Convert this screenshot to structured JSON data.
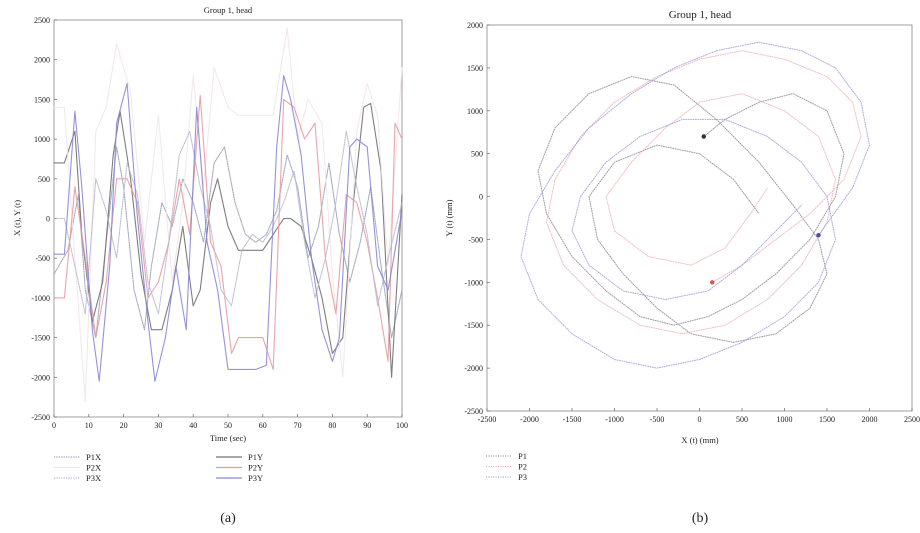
{
  "chart_data": [
    {
      "panel_label": "(a)",
      "type": "line",
      "title": "Group 1, head",
      "xlabel": "Time (sec)",
      "ylabel": "X (t), Y (t)",
      "xlim": [
        0,
        100
      ],
      "ylim": [
        -2500,
        2500
      ],
      "xticks": [
        "0",
        "10",
        "20",
        "30",
        "40",
        "50",
        "60",
        "70",
        "80",
        "90",
        "100"
      ],
      "yticks": [
        "2500",
        "2000",
        "1500",
        "1000",
        "500",
        "0",
        "-500",
        "-1000",
        "-1500",
        "-2000",
        "-2500"
      ],
      "grid": false,
      "legend_position": "bottom-left",
      "series": [
        {
          "name": "P1X",
          "color": "#9aa0b4",
          "x": [
            0,
            4,
            7,
            9,
            12,
            15,
            18,
            20,
            23,
            26,
            28,
            31,
            34,
            37,
            40,
            43,
            46,
            49,
            52,
            55,
            58,
            61,
            64,
            67,
            70,
            73,
            76,
            79,
            82,
            85,
            88,
            91,
            94,
            97,
            100
          ],
          "y": [
            -700,
            -400,
            300,
            -900,
            -1500,
            -300,
            900,
            400,
            -900,
            -1400,
            -600,
            200,
            -100,
            500,
            200,
            -300,
            700,
            900,
            200,
            -200,
            -300,
            -200,
            100,
            800,
            400,
            -500,
            -100,
            700,
            -200,
            -800,
            -300,
            400,
            -600,
            -1500,
            -900
          ]
        },
        {
          "name": "P1Y",
          "color": "#707070",
          "x": [
            0,
            3,
            6,
            8,
            11,
            14,
            17,
            19,
            22,
            25,
            28,
            31,
            34,
            37,
            40,
            42,
            45,
            47,
            50,
            53,
            56,
            60,
            63,
            66,
            68,
            71,
            74,
            77,
            80,
            83,
            86,
            89,
            91,
            94,
            97,
            100
          ],
          "y": [
            700,
            700,
            1100,
            -200,
            -1300,
            -800,
            800,
            1350,
            500,
            -700,
            -1400,
            -1400,
            -900,
            -100,
            -1100,
            -900,
            200,
            500,
            -100,
            -400,
            -400,
            -400,
            -200,
            0,
            0,
            -100,
            -500,
            -1000,
            -1700,
            -1500,
            200,
            1400,
            1450,
            600,
            -2000,
            300
          ]
        },
        {
          "name": "P2X",
          "color": "#f2e6ea",
          "x": [
            0,
            3,
            6,
            9,
            12,
            15,
            18,
            22,
            26,
            30,
            34,
            37,
            40,
            43,
            46,
            50,
            53,
            56,
            60,
            63,
            67,
            70,
            73,
            77,
            80,
            83,
            87,
            90,
            93,
            96,
            100
          ],
          "y": [
            1400,
            1400,
            -500,
            -2300,
            1100,
            1400,
            2200,
            1600,
            -300,
            1300,
            -800,
            200,
            1800,
            400,
            1900,
            1400,
            1300,
            1300,
            1300,
            1300,
            2400,
            1000,
            1500,
            1200,
            -700,
            -2000,
            1100,
            1700,
            1300,
            -600,
            1900
          ]
        },
        {
          "name": "P2Y",
          "color": "#e89aa0",
          "x": [
            0,
            3,
            6,
            9,
            12,
            15,
            18,
            21,
            24,
            27,
            30,
            33,
            36,
            39,
            42,
            45,
            48,
            51,
            53,
            56,
            60,
            63,
            66,
            69,
            72,
            75,
            78,
            81,
            84,
            87,
            90,
            93,
            96,
            98,
            100
          ],
          "y": [
            -1000,
            -1000,
            400,
            -500,
            -1500,
            -800,
            500,
            500,
            200,
            -1000,
            -800,
            -300,
            500,
            -200,
            1550,
            -300,
            -600,
            -1700,
            -1500,
            -1500,
            -1500,
            -1900,
            1500,
            1400,
            1000,
            1200,
            -500,
            -1200,
            300,
            200,
            -300,
            -1000,
            -1800,
            1200,
            1000
          ]
        },
        {
          "name": "P3X",
          "color": "#b8b8d0",
          "x": [
            0,
            3,
            6,
            9,
            12,
            15,
            18,
            21,
            24,
            27,
            30,
            33,
            36,
            39,
            42,
            45,
            48,
            51,
            54,
            57,
            60,
            63,
            66,
            69,
            72,
            75,
            78,
            81,
            84,
            87,
            90,
            93,
            96,
            100
          ],
          "y": [
            0,
            0,
            -600,
            -1200,
            500,
            100,
            -500,
            700,
            300,
            -800,
            -1200,
            -300,
            800,
            1100,
            400,
            -100,
            -900,
            -1100,
            -400,
            -200,
            -300,
            -100,
            200,
            600,
            -300,
            -1000,
            -500,
            200,
            1100,
            400,
            -200,
            -1100,
            -500,
            200
          ]
        },
        {
          "name": "P3Y",
          "color": "#8a86d8",
          "x": [
            0,
            3,
            6,
            8,
            11,
            13,
            16,
            18,
            21,
            24,
            27,
            29,
            32,
            35,
            38,
            41,
            44,
            47,
            50,
            52,
            55,
            58,
            61,
            64,
            66,
            68,
            71,
            74,
            77,
            80,
            82,
            85,
            87,
            90,
            93,
            96,
            100
          ],
          "y": [
            -450,
            -450,
            1350,
            400,
            -1400,
            -2050,
            -600,
            1200,
            1700,
            0,
            -1300,
            -2050,
            -1500,
            -600,
            -1400,
            1400,
            -300,
            -900,
            -1900,
            -1900,
            -1900,
            -1900,
            -1850,
            900,
            1800,
            1500,
            800,
            -500,
            -1400,
            -1800,
            -1500,
            900,
            1000,
            900,
            -600,
            -900,
            100
          ]
        }
      ]
    },
    {
      "panel_label": "(b)",
      "type": "line",
      "title": "Group 1, head",
      "xlabel": "X (t) (mm)",
      "ylabel": "Y (t) (mm)",
      "xlim": [
        -2500,
        2500
      ],
      "ylim": [
        -2500,
        2000
      ],
      "xticks": [
        "-2500",
        "-2000",
        "-1500",
        "-1000",
        "-500",
        "0",
        "500",
        "1000",
        "1500",
        "2000",
        "2500"
      ],
      "yticks": [
        "2000",
        "1500",
        "1000",
        "500",
        "0",
        "-500",
        "-1000",
        "-1500",
        "-2000",
        "-2500"
      ],
      "grid": false,
      "legend_position": "bottom-left",
      "series": [
        {
          "name": "P1",
          "color": "#7a7a86",
          "x": [
            50,
            300,
            700,
            1100,
            1500,
            1700,
            1600,
            1300,
            900,
            500,
            100,
            -300,
            -700,
            -1100,
            -1500,
            -1800,
            -1900,
            -1700,
            -1300,
            -800,
            -300,
            200,
            700,
            1100,
            1400,
            1500,
            1300,
            900,
            400,
            -100,
            -500,
            -900,
            -1200,
            -1300,
            -1000,
            -500,
            0,
            400,
            700
          ],
          "y": [
            700,
            900,
            1100,
            1200,
            1000,
            500,
            0,
            -500,
            -900,
            -1200,
            -1400,
            -1500,
            -1400,
            -1100,
            -700,
            -200,
            300,
            800,
            1200,
            1400,
            1300,
            900,
            400,
            -100,
            -500,
            -900,
            -1300,
            -1600,
            -1700,
            -1600,
            -1300,
            -900,
            -500,
            0,
            400,
            600,
            500,
            200,
            -200
          ]
        },
        {
          "name": "P2",
          "color": "#e8a4aa",
          "x": [
            150,
            500,
            900,
            1300,
            1700,
            1900,
            1800,
            1500,
            1000,
            500,
            0,
            -500,
            -1000,
            -1400,
            -1700,
            -1800,
            -1600,
            -1200,
            -700,
            -200,
            300,
            800,
            1200,
            1500,
            1600,
            1400,
            1000,
            500,
            0,
            -400,
            -800,
            -1100,
            -1000,
            -600,
            -100,
            300,
            600,
            800
          ],
          "y": [
            -1000,
            -800,
            -500,
            -200,
            200,
            700,
            1100,
            1400,
            1600,
            1700,
            1600,
            1400,
            1100,
            700,
            200,
            -300,
            -800,
            -1200,
            -1500,
            -1600,
            -1500,
            -1200,
            -800,
            -300,
            200,
            700,
            1000,
            1200,
            1100,
            800,
            400,
            0,
            -400,
            -700,
            -800,
            -600,
            -200,
            100
          ]
        },
        {
          "name": "P3",
          "color": "#8f8fd6",
          "x": [
            1400,
            1800,
            2000,
            1900,
            1600,
            1200,
            700,
            200,
            -300,
            -800,
            -1300,
            -1700,
            -2000,
            -2100,
            -1900,
            -1500,
            -1000,
            -500,
            0,
            500,
            1000,
            1400,
            1600,
            1500,
            1200,
            800,
            300,
            -200,
            -700,
            -1100,
            -1400,
            -1500,
            -1300,
            -900,
            -400,
            100,
            500,
            900,
            1200
          ],
          "y": [
            -450,
            100,
            600,
            1100,
            1500,
            1700,
            1800,
            1700,
            1500,
            1200,
            800,
            300,
            -200,
            -700,
            -1200,
            -1600,
            -1900,
            -2000,
            -1900,
            -1700,
            -1400,
            -1000,
            -500,
            0,
            400,
            700,
            900,
            900,
            700,
            400,
            0,
            -400,
            -800,
            -1100,
            -1200,
            -1100,
            -800,
            -400,
            -100
          ]
        }
      ]
    }
  ]
}
